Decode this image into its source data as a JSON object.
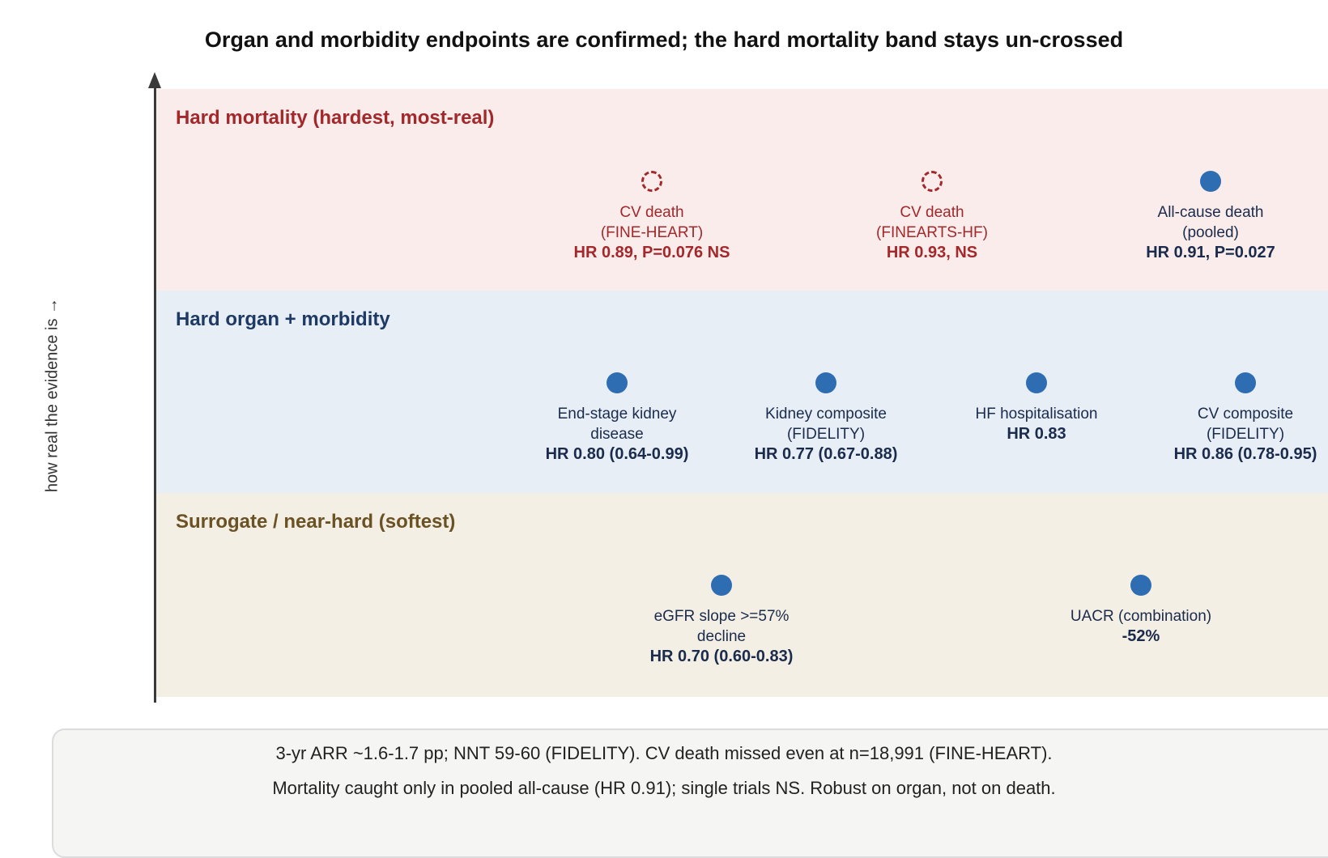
{
  "title": "Organ and morbidity endpoints are confirmed; the hard mortality band stays un-crossed",
  "y_axis_label": "how real the evidence is →",
  "colors": {
    "mortality_band_bg": "#faecea",
    "organ_band_bg": "#e8eef6",
    "surrogate_band_bg": "#f4efe5",
    "mortality_label": "#a3282c",
    "organ_label": "#1e3a64",
    "surrogate_label": "#6b5224",
    "marker_filled": "#2f6db3",
    "marker_ns": "#a3282c"
  },
  "bands": [
    {
      "label": "Hard mortality (hardest, most-real)",
      "points": [
        {
          "label_lines": [
            "CV death",
            "(FINE-HEART)"
          ],
          "stat": "HR 0.89, P=0.076 NS",
          "significant": false
        },
        {
          "label_lines": [
            "CV death",
            "(FINEARTS-HF)"
          ],
          "stat": "HR 0.93, NS",
          "significant": false
        },
        {
          "label_lines": [
            "All-cause death",
            "(pooled)"
          ],
          "stat": "HR 0.91, P=0.027",
          "significant": true
        }
      ]
    },
    {
      "label": "Hard organ + morbidity",
      "points": [
        {
          "label_lines": [
            "End-stage kidney",
            "disease"
          ],
          "stat": "HR 0.80 (0.64-0.99)",
          "significant": true
        },
        {
          "label_lines": [
            "Kidney composite",
            "(FIDELITY)"
          ],
          "stat": "HR 0.77 (0.67-0.88)",
          "significant": true
        },
        {
          "label_lines": [
            "HF hospitalisation"
          ],
          "stat": "HR 0.83",
          "significant": true
        },
        {
          "label_lines": [
            "CV composite",
            "(FIDELITY)"
          ],
          "stat": "HR 0.86 (0.78-0.95)",
          "significant": true
        }
      ]
    },
    {
      "label": "Surrogate / near-hard (softest)",
      "points": [
        {
          "label_lines": [
            "eGFR slope >=57%",
            "decline"
          ],
          "stat": "HR 0.70 (0.60-0.83)",
          "significant": true
        },
        {
          "label_lines": [
            "UACR (combination)"
          ],
          "stat": "-52%",
          "significant": true
        }
      ]
    }
  ],
  "footer": {
    "lines": [
      "3-yr ARR ~1.6-1.7 pp; NNT 59-60 (FIDELITY). CV death missed even at n=18,991 (FINE-HEART).",
      "Mortality caught only in pooled all-cause (HR 0.91); single trials NS. Robust on organ, not on death."
    ]
  }
}
